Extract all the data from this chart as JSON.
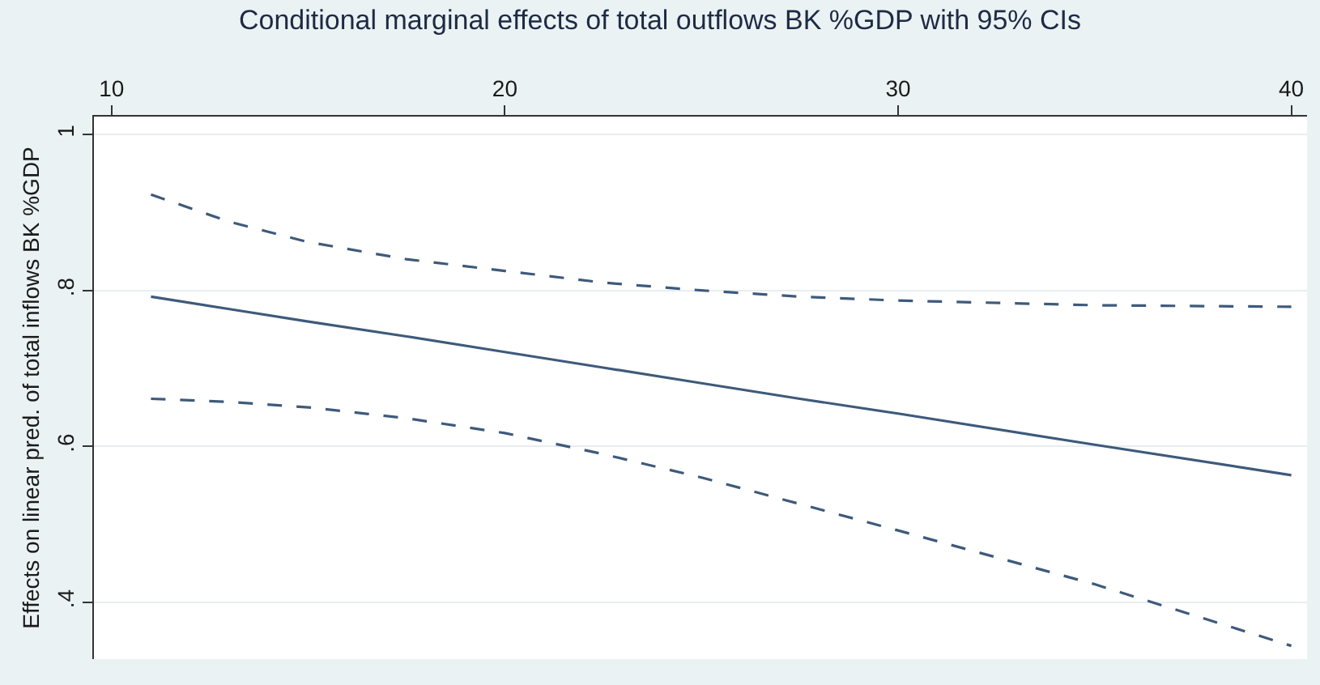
{
  "chart_data": {
    "type": "line",
    "title": "Conditional marginal effects of total outflows BK %GDP with 95% CIs",
    "ylabel": "Effects on linear pred. of total inflows BK %GDP",
    "x": [
      11,
      13,
      15,
      17.5,
      20,
      22.5,
      25,
      27.5,
      30,
      35,
      40
    ],
    "series": [
      {
        "color": "#3e5a7b",
        "line_style": "solid",
        "values": [
          0.792,
          0.776,
          0.76,
          0.741,
          0.721,
          0.701,
          0.681,
          0.661,
          0.642,
          0.602,
          0.563
        ]
      },
      {
        "color": "#3e5a7b",
        "line_style": "dashed",
        "values": [
          0.923,
          0.888,
          0.862,
          0.84,
          0.825,
          0.81,
          0.8,
          0.792,
          0.787,
          0.781,
          0.779
        ]
      },
      {
        "color": "#3e5a7b",
        "line_style": "dashed",
        "values": [
          0.661,
          0.657,
          0.65,
          0.636,
          0.617,
          0.59,
          0.56,
          0.526,
          0.492,
          0.423,
          0.344
        ]
      }
    ],
    "xlim": [
      9.55,
      40.4
    ],
    "xticks": [
      10,
      20,
      30,
      40
    ],
    "ylim": [
      0.327,
      1.023
    ],
    "yticks": [
      {
        "value": 0.4,
        "label": ".4"
      },
      {
        "value": 0.6,
        "label": ".6"
      },
      {
        "value": 0.8,
        "label": ".8"
      },
      {
        "value": 1,
        "label": "1"
      }
    ],
    "grid": "y",
    "marker": "none"
  }
}
